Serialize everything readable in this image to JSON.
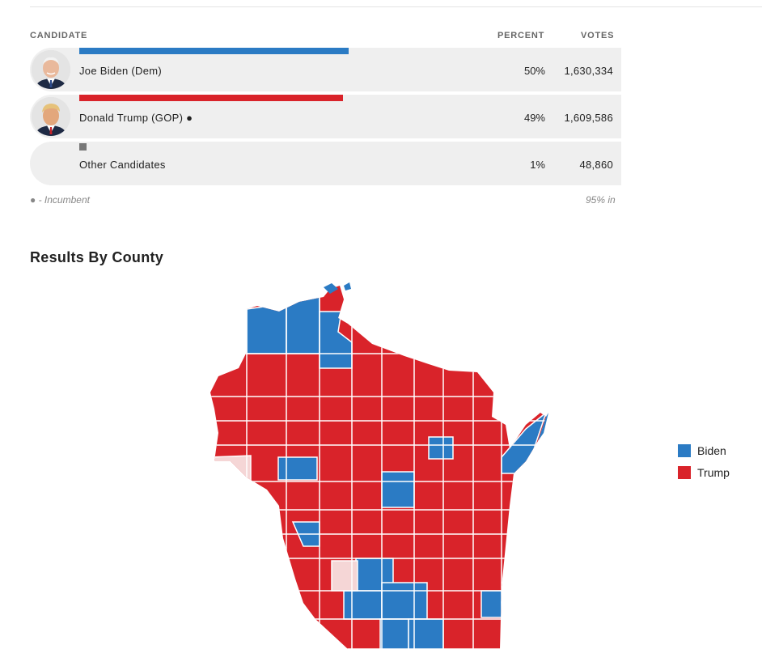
{
  "table": {
    "headers": {
      "candidate": "CANDIDATE",
      "percent": "PERCENT",
      "votes": "VOTES"
    },
    "rows": [
      {
        "name": "Joe Biden (Dem)",
        "percent": "50%",
        "votes": "1,630,334",
        "share": 0.5,
        "color": "#2b7bc4"
      },
      {
        "name": "Donald Trump (GOP) ●",
        "percent": "49%",
        "votes": "1,609,586",
        "share": 0.49,
        "color": "#d9232a"
      },
      {
        "name": "Other Candidates",
        "percent": "1%",
        "votes": "48,860",
        "share": 0.01,
        "color": "#777777"
      }
    ],
    "footnote_left": "● - Incumbent",
    "footnote_right": "95% in"
  },
  "map_section": {
    "title": "Results By County",
    "legend": [
      {
        "label": "Biden",
        "color": "#2b7bc4"
      },
      {
        "label": "Trump",
        "color": "#d9232a"
      }
    ],
    "tie_color": "#f5d6d6"
  }
}
